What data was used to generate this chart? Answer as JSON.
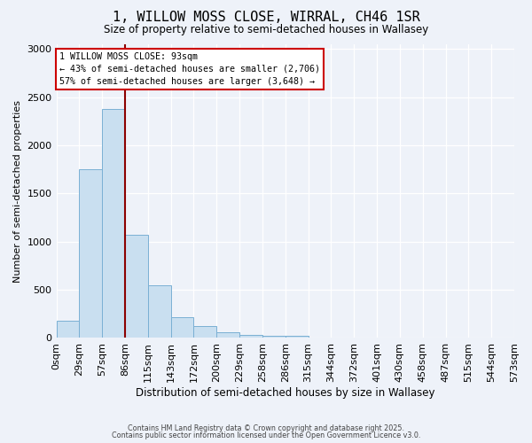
{
  "title_line1": "1, WILLOW MOSS CLOSE, WIRRAL, CH46 1SR",
  "title_line2": "Size of property relative to semi-detached houses in Wallasey",
  "xlabel": "Distribution of semi-detached houses by size in Wallasey",
  "ylabel": "Number of semi-detached properties",
  "bin_labels": [
    "0sqm",
    "29sqm",
    "57sqm",
    "86sqm",
    "115sqm",
    "143sqm",
    "172sqm",
    "200sqm",
    "229sqm",
    "258sqm",
    "286sqm",
    "315sqm",
    "344sqm",
    "372sqm",
    "401sqm",
    "430sqm",
    "458sqm",
    "487sqm",
    "515sqm",
    "544sqm",
    "573sqm"
  ],
  "bar_heights": [
    175,
    1750,
    2380,
    1070,
    545,
    220,
    120,
    60,
    30,
    25,
    25,
    0,
    0,
    0,
    0,
    0,
    0,
    0,
    0,
    0
  ],
  "bar_color": "#c9dff0",
  "bar_edge_color": "#7ab0d4",
  "property_size_bin": 3,
  "property_label": "93",
  "vline_color": "#8B0000",
  "annotation_text_line1": "1 WILLOW MOSS CLOSE: 93sqm",
  "annotation_text_line2": "← 43% of semi-detached houses are smaller (2,706)",
  "annotation_text_line3": "57% of semi-detached houses are larger (3,648) →",
  "annotation_box_facecolor": "#ffffff",
  "annotation_box_edgecolor": "#cc0000",
  "ylim": [
    0,
    3050
  ],
  "background_color": "#eef2f9",
  "grid_color": "#ffffff",
  "footer_line1": "Contains HM Land Registry data © Crown copyright and database right 2025.",
  "footer_line2": "Contains public sector information licensed under the Open Government Licence v3.0."
}
